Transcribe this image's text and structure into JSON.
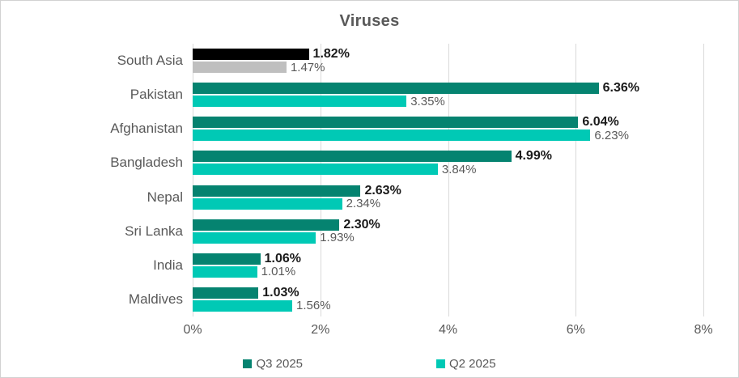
{
  "chart_data": {
    "type": "bar",
    "orientation": "horizontal",
    "title": "Viruses",
    "categories": [
      "South Asia",
      "Pakistan",
      "Afghanistan",
      "Bangladesh",
      "Nepal",
      "Sri Lanka",
      "India",
      "Maldives"
    ],
    "series": [
      {
        "name": "Q3 2025",
        "color": "#058370",
        "values": [
          1.82,
          6.36,
          6.04,
          4.99,
          2.63,
          2.3,
          1.06,
          1.03
        ]
      },
      {
        "name": "Q2 2025",
        "color": "#00c9b5",
        "values": [
          1.47,
          3.35,
          6.23,
          3.84,
          2.34,
          1.93,
          1.01,
          1.56
        ]
      }
    ],
    "category_color_overrides": {
      "South Asia": [
        "#000000",
        "#bfbfbf"
      ]
    },
    "value_suffix": "%",
    "xlim": [
      0,
      8
    ],
    "ticks": [
      0,
      2,
      4,
      6,
      8
    ],
    "tick_suffix": "%",
    "grid": true,
    "legend_position": "bottom",
    "colors": {
      "grid": "#d9d9d9",
      "axis_text": "#595959",
      "title_text": "#595959",
      "series0_value_label": "#1a1a1a",
      "series1_value_label": "#595959",
      "frame_border": "#d2d2d2"
    }
  }
}
